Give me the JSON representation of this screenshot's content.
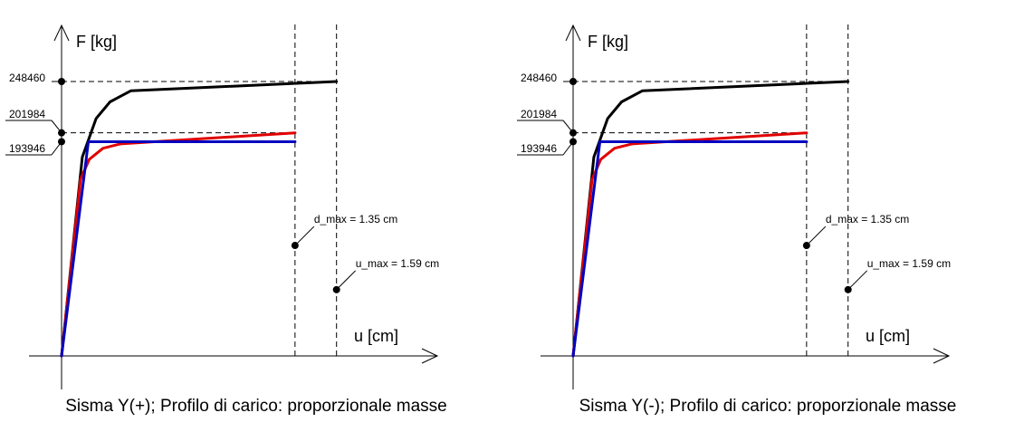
{
  "charts": [
    {
      "caption": "Sisma Y(+); Profilo di carico: proporzionale masse",
      "xlabel": "u [cm]",
      "ylabel": "F [kg]",
      "y_ticks": [
        "248460",
        "201984",
        "193946"
      ],
      "annotations": [
        "d_max = 1.35 cm",
        "u_max = 1.59 cm"
      ]
    },
    {
      "caption": "Sisma Y(-); Profilo di carico: proporzionale masse",
      "xlabel": "u [cm]",
      "ylabel": "F [kg]",
      "y_ticks": [
        "248460",
        "201984",
        "193946"
      ],
      "annotations": [
        "d_max = 1.35 cm",
        "u_max = 1.59 cm"
      ]
    }
  ],
  "chart_data": [
    {
      "type": "line",
      "title": "Sisma Y(+); Profilo di carico: proporzionale masse",
      "xlabel": "u [cm]",
      "ylabel": "F [kg]",
      "xlim": [
        0,
        2.2
      ],
      "ylim": [
        0,
        290000
      ],
      "y_ticks": [
        248460,
        201984,
        193946
      ],
      "series": [
        {
          "color": "#000000",
          "x": [
            0,
            0.12,
            0.2,
            0.28,
            0.4,
            1.59
          ],
          "y": [
            0,
            180000,
            215000,
            230000,
            240000,
            248460
          ]
        },
        {
          "color": "#e00000",
          "x": [
            0,
            0.11,
            0.16,
            0.24,
            0.34,
            1.35
          ],
          "y": [
            0,
            160000,
            178000,
            188000,
            192000,
            201984
          ]
        },
        {
          "color": "#0000c0",
          "x": [
            0,
            0.155,
            1.35
          ],
          "y": [
            0,
            193946,
            193946
          ]
        }
      ],
      "annotations": [
        {
          "text": "d_max = 1.35 cm",
          "x": 1.35,
          "y": 100000
        },
        {
          "text": "u_max = 1.59 cm",
          "x": 1.59,
          "y": 60000
        }
      ],
      "vlines": [
        1.35,
        1.59
      ],
      "hlines": [
        248460,
        201984,
        193946
      ],
      "grid": false
    },
    {
      "type": "line",
      "title": "Sisma Y(-); Profilo di carico: proporzionale masse",
      "xlabel": "u [cm]",
      "ylabel": "F [kg]",
      "xlim": [
        0,
        2.2
      ],
      "ylim": [
        0,
        290000
      ],
      "y_ticks": [
        248460,
        201984,
        193946
      ],
      "series": [
        {
          "color": "#000000",
          "x": [
            0,
            0.12,
            0.2,
            0.28,
            0.4,
            1.59
          ],
          "y": [
            0,
            180000,
            215000,
            230000,
            240000,
            248460
          ]
        },
        {
          "color": "#e00000",
          "x": [
            0,
            0.11,
            0.16,
            0.24,
            0.34,
            1.35
          ],
          "y": [
            0,
            160000,
            178000,
            188000,
            192000,
            201984
          ]
        },
        {
          "color": "#0000c0",
          "x": [
            0,
            0.155,
            1.35
          ],
          "y": [
            0,
            193946,
            193946
          ]
        }
      ],
      "annotations": [
        {
          "text": "d_max = 1.35 cm",
          "x": 1.35,
          "y": 100000
        },
        {
          "text": "u_max = 1.59 cm",
          "x": 1.59,
          "y": 60000
        }
      ],
      "vlines": [
        1.35,
        1.59
      ],
      "hlines": [
        248460,
        201984,
        193946
      ],
      "grid": false
    }
  ]
}
